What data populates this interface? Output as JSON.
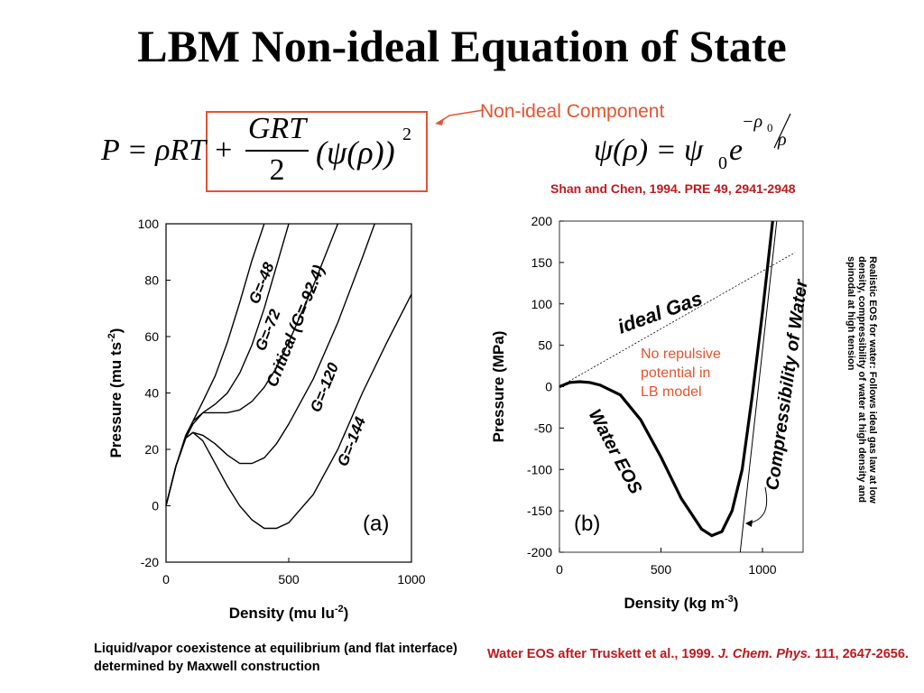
{
  "slide": {
    "title": "LBM Non-ideal Equation of State",
    "nonideal_label": "Non-ideal Component",
    "citation": "Shan and Chen, 1994. PRE 49, 2941-2948",
    "caption_a": "Liquid/vapor coexistence at equilibrium (and flat interface) determined by Maxwell construction",
    "caption_b": {
      "prefix": "Water EOS after Truskett et al., 1999. ",
      "journal": "J. Chem. Phys.",
      "suffix": " 111, 2647-2656."
    },
    "side_note": "Realistic EOS for water: Follows ideal gas law at low density, compressibility of water at high density and spinodal at high tension",
    "no_repulsive": [
      "No repulsive",
      "potential in",
      "LB model"
    ],
    "eq1": {
      "lhs": "P = ρRT + ",
      "num": "GRT",
      "den": "2",
      "paren": "(ψ(ρ))",
      "exp": "2"
    },
    "eq2": {
      "lhs": "ψ(ρ) = ψ",
      "sub": "0",
      "e": "e",
      "exp_top": "−ρ",
      "exp_top_sub": "0",
      "exp_bot": "ρ"
    },
    "colors": {
      "accent": "#e8522f",
      "citation": "#c0181c"
    }
  },
  "chart_data": [
    {
      "type": "line",
      "panel_label": "(a)",
      "xlabel": "Density (mu lu",
      "xlabel_sup": "-2",
      "xlabel_end": ")",
      "ylabel": "Pressure (mu ts",
      "ylabel_sup": "-2",
      "ylabel_end": ")",
      "xlim": [
        0,
        1000
      ],
      "ylim": [
        -20,
        100
      ],
      "xticks": [
        0,
        500,
        1000
      ],
      "yticks": [
        -20,
        0,
        20,
        40,
        60,
        80,
        100
      ],
      "grid": false,
      "series": [
        {
          "name": "G=-48",
          "x": [
            0,
            40,
            80,
            110,
            150,
            200,
            250,
            300,
            350,
            400
          ],
          "y": [
            0,
            14,
            24,
            30,
            37,
            46,
            58,
            72,
            87,
            100
          ]
        },
        {
          "name": "G=-72",
          "x": [
            0,
            40,
            80,
            110,
            150,
            200,
            250,
            300,
            350,
            400,
            450,
            500
          ],
          "y": [
            0,
            14,
            24,
            29,
            33,
            36,
            40,
            47,
            57,
            70,
            85,
            100
          ]
        },
        {
          "name": "Critical (G=-92.4)",
          "x": [
            0,
            40,
            80,
            110,
            150,
            200,
            250,
            300,
            350,
            400,
            450,
            500,
            550,
            600,
            650,
            700
          ],
          "y": [
            0,
            14,
            25,
            30,
            33,
            33,
            33,
            34,
            37,
            42,
            49,
            58,
            68,
            78,
            89,
            100
          ]
        },
        {
          "name": "G=-120",
          "x": [
            0,
            40,
            80,
            110,
            150,
            200,
            250,
            300,
            350,
            400,
            450,
            500,
            600,
            700,
            800,
            850
          ],
          "y": [
            0,
            14,
            24,
            26,
            25,
            22,
            18,
            15,
            15,
            17,
            22,
            29,
            45,
            65,
            88,
            100
          ]
        },
        {
          "name": "G=-144",
          "x": [
            0,
            40,
            80,
            110,
            150,
            200,
            250,
            300,
            350,
            400,
            450,
            500,
            600,
            700,
            800,
            900,
            1000
          ],
          "y": [
            0,
            14,
            24,
            26,
            23,
            15,
            7,
            0,
            -5,
            -8,
            -8,
            -6,
            4,
            20,
            40,
            58,
            75
          ]
        }
      ],
      "curve_labels": [
        "G=-48",
        "G=-72",
        "Critical (G=-92.4)",
        "G=-120",
        "G=-144"
      ]
    },
    {
      "type": "line",
      "panel_label": "(b)",
      "xlabel": "Density (kg m",
      "xlabel_sup": "-3",
      "xlabel_end": ")",
      "ylabel": "Pressure (MPa)",
      "xlim": [
        0,
        1200
      ],
      "ylim": [
        -200,
        200
      ],
      "xticks": [
        0,
        500,
        1000
      ],
      "yticks": [
        -200,
        -150,
        -100,
        -50,
        0,
        50,
        100,
        150,
        200
      ],
      "grid": false,
      "series": [
        {
          "name": "Water EOS",
          "x": [
            0,
            50,
            100,
            150,
            200,
            300,
            400,
            500,
            600,
            700,
            750,
            800,
            850,
            900,
            950,
            1000,
            1050
          ],
          "y": [
            0,
            5,
            6,
            5,
            2,
            -10,
            -40,
            -85,
            -135,
            -172,
            -180,
            -175,
            -150,
            -100,
            -10,
            90,
            200
          ]
        },
        {
          "name": "ideal Gas",
          "x": [
            0,
            1160
          ],
          "y": [
            0,
            162
          ]
        },
        {
          "name": "Compressibility of Water",
          "x": [
            890,
            1070
          ],
          "y": [
            -200,
            200
          ]
        }
      ],
      "curve_labels": [
        "ideal Gas",
        "Water EOS",
        "Compressibility of Water"
      ]
    }
  ]
}
